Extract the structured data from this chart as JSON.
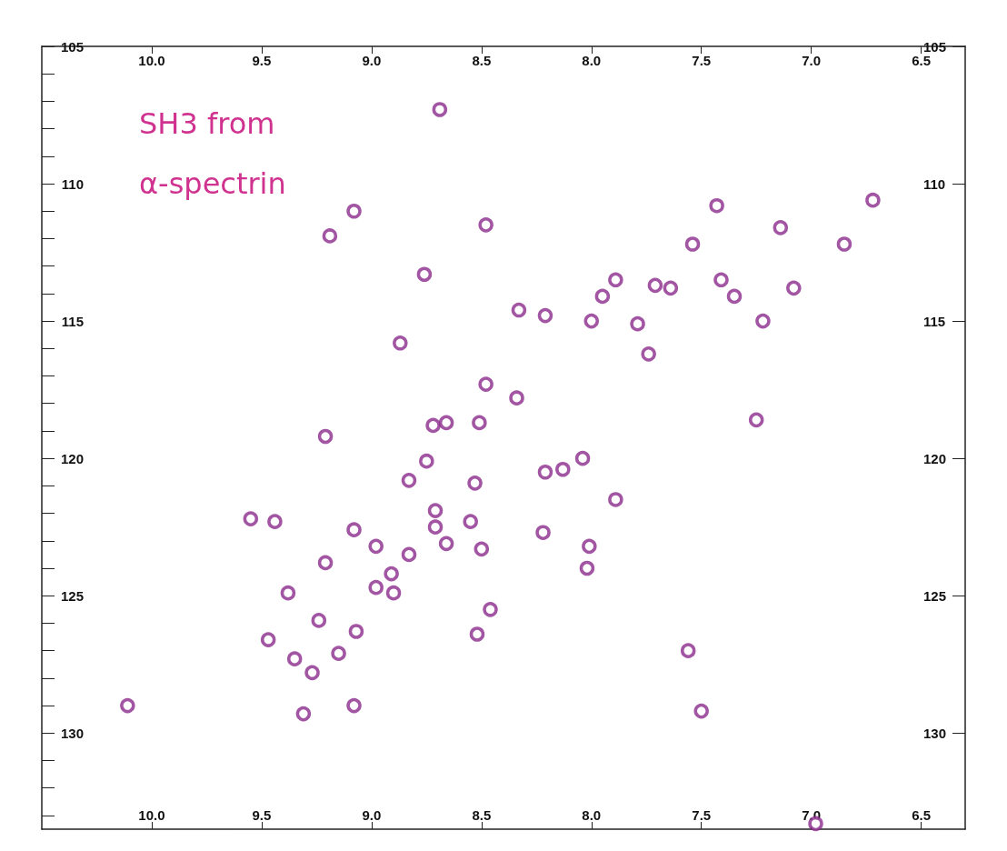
{
  "chart_data": {
    "type": "scatter",
    "annotations": [
      "SH3 from",
      "α-spectrin"
    ],
    "x": [
      8.69,
      9.08,
      9.19,
      8.48,
      8.76,
      8.33,
      8.21,
      7.95,
      8.0,
      7.89,
      7.71,
      7.64,
      7.79,
      7.74,
      7.43,
      7.54,
      7.41,
      7.35,
      7.14,
      7.22,
      7.08,
      6.85,
      6.72,
      8.87,
      8.48,
      8.34,
      8.72,
      8.66,
      8.51,
      8.75,
      7.25,
      9.21,
      8.83,
      8.53,
      8.21,
      8.13,
      8.04,
      7.89,
      9.55,
      9.44,
      9.08,
      8.71,
      8.71,
      8.55,
      8.66,
      8.5,
      8.22,
      8.01,
      8.02,
      8.98,
      9.21,
      8.91,
      8.98,
      8.9,
      9.38,
      8.46,
      9.24,
      9.07,
      9.47,
      8.52,
      9.15,
      9.35,
      9.27,
      7.56,
      10.11,
      9.08,
      9.31,
      7.5,
      8.83,
      6.98
    ],
    "values": [
      107.3,
      111.0,
      111.9,
      111.5,
      113.3,
      114.6,
      114.8,
      114.1,
      115.0,
      113.5,
      113.7,
      113.8,
      115.1,
      116.2,
      110.8,
      112.2,
      113.5,
      114.1,
      111.6,
      115.0,
      113.8,
      112.2,
      110.6,
      115.8,
      117.3,
      117.8,
      118.8,
      118.7,
      118.7,
      120.1,
      118.6,
      119.2,
      120.8,
      120.9,
      120.5,
      120.4,
      120.0,
      121.5,
      122.2,
      122.3,
      122.6,
      121.9,
      122.5,
      122.3,
      123.1,
      123.3,
      122.7,
      123.2,
      124.0,
      123.2,
      123.8,
      124.2,
      124.7,
      124.9,
      124.9,
      125.5,
      125.9,
      126.3,
      126.6,
      126.4,
      127.1,
      127.3,
      127.8,
      127.0,
      129.0,
      129.0,
      129.3,
      129.2,
      123.5,
      133.3
    ],
    "color": "#8b2a8b",
    "marker": "circle",
    "grid": false,
    "xlim": [
      10.5,
      6.3
    ],
    "x2lim": [
      10.5,
      6.3
    ],
    "ylim": [
      133.5,
      105
    ],
    "y2lim": [
      133.5,
      105
    ],
    "xticks": [
      {
        "value": 10,
        "label": "10.0"
      },
      {
        "value": 9.5,
        "label": "9.5"
      },
      {
        "value": 9,
        "label": "9.0"
      },
      {
        "value": 8.5,
        "label": "8.5"
      },
      {
        "value": 8,
        "label": "8.0"
      },
      {
        "value": 7.5,
        "label": "7.5"
      },
      {
        "value": 7,
        "label": "7.0"
      },
      {
        "value": 6.5,
        "label": "6.5"
      }
    ],
    "x2ticks": [
      {
        "value": 10,
        "label": "10.0"
      },
      {
        "value": 9.5,
        "label": "9.5"
      },
      {
        "value": 9,
        "label": "9.0"
      },
      {
        "value": 8.5,
        "label": "8.5"
      },
      {
        "value": 8,
        "label": "8.0"
      },
      {
        "value": 7.5,
        "label": "7.5"
      },
      {
        "value": 7,
        "label": "7.0"
      },
      {
        "value": 6.5,
        "label": "6.5"
      }
    ],
    "yticks": [
      105,
      {
        "value": 106,
        "label": null
      },
      {
        "value": 107,
        "label": null
      },
      {
        "value": 108,
        "label": null
      },
      {
        "value": 109,
        "label": null
      },
      110,
      {
        "value": 111,
        "label": null
      },
      {
        "value": 112,
        "label": null
      },
      {
        "value": 113,
        "label": null
      },
      {
        "value": 114,
        "label": null
      },
      115,
      {
        "value": 116,
        "label": null
      },
      {
        "value": 117,
        "label": null
      },
      {
        "value": 118,
        "label": null
      },
      {
        "value": 119,
        "label": null
      },
      120,
      {
        "value": 121,
        "label": null
      },
      {
        "value": 122,
        "label": null
      },
      {
        "value": 123,
        "label": null
      },
      {
        "value": 124,
        "label": null
      },
      125,
      {
        "value": 126,
        "label": null
      },
      {
        "value": 127,
        "label": null
      },
      {
        "value": 128,
        "label": null
      },
      {
        "value": 129,
        "label": null
      },
      130,
      {
        "value": 131,
        "label": null
      },
      {
        "value": 132,
        "label": null
      },
      {
        "value": 133,
        "label": null
      }
    ],
    "y2ticks": [
      105,
      110,
      115,
      120,
      125,
      130
    ]
  }
}
